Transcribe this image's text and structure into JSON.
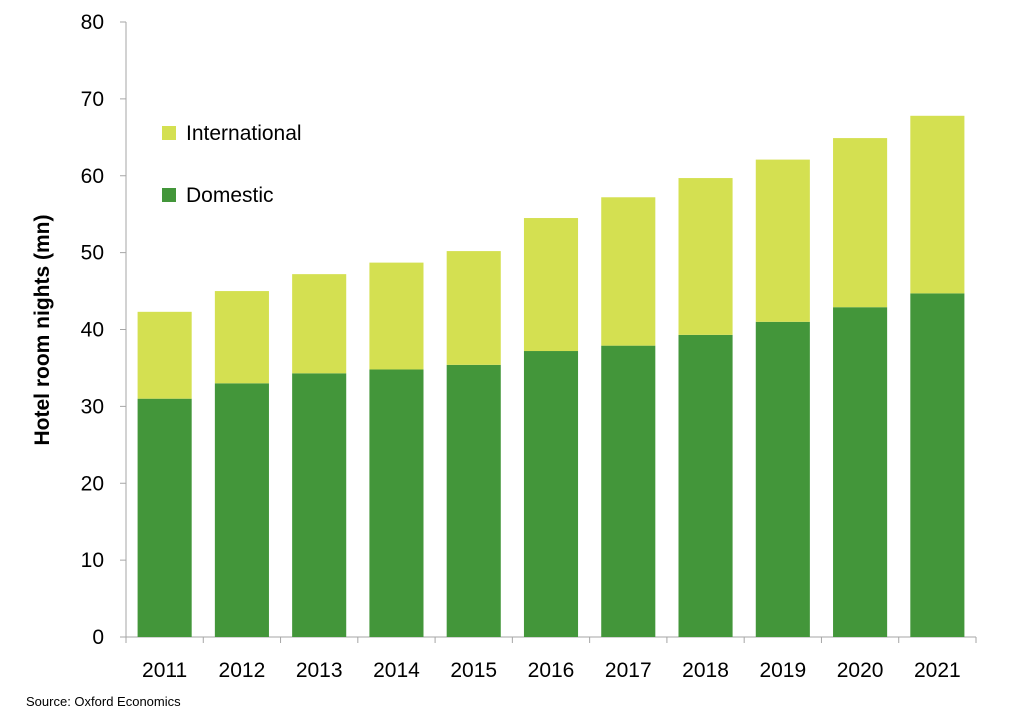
{
  "chart_data": {
    "type": "bar",
    "stacked": true,
    "categories": [
      "2011",
      "2012",
      "2013",
      "2014",
      "2015",
      "2016",
      "2017",
      "2018",
      "2019",
      "2020",
      "2021"
    ],
    "series": [
      {
        "name": "Domestic",
        "color": "#43963a",
        "values": [
          31.0,
          33.0,
          34.3,
          34.8,
          35.4,
          37.2,
          37.9,
          39.3,
          41.0,
          42.9,
          44.7
        ]
      },
      {
        "name": "International",
        "color": "#d4e051",
        "values": [
          11.3,
          12.0,
          12.9,
          13.9,
          14.8,
          17.3,
          19.3,
          20.4,
          21.1,
          22.0,
          23.1
        ]
      }
    ],
    "ylabel": "Hotel room nights (mn)",
    "xlabel": "",
    "ylim": [
      0,
      80
    ],
    "yticks": [
      0,
      10,
      20,
      30,
      40,
      50,
      60,
      70,
      80
    ],
    "grid": false,
    "legend": {
      "placement": "top-left",
      "order": [
        "International",
        "Domestic"
      ]
    }
  },
  "source": "Source: Oxford Economics"
}
